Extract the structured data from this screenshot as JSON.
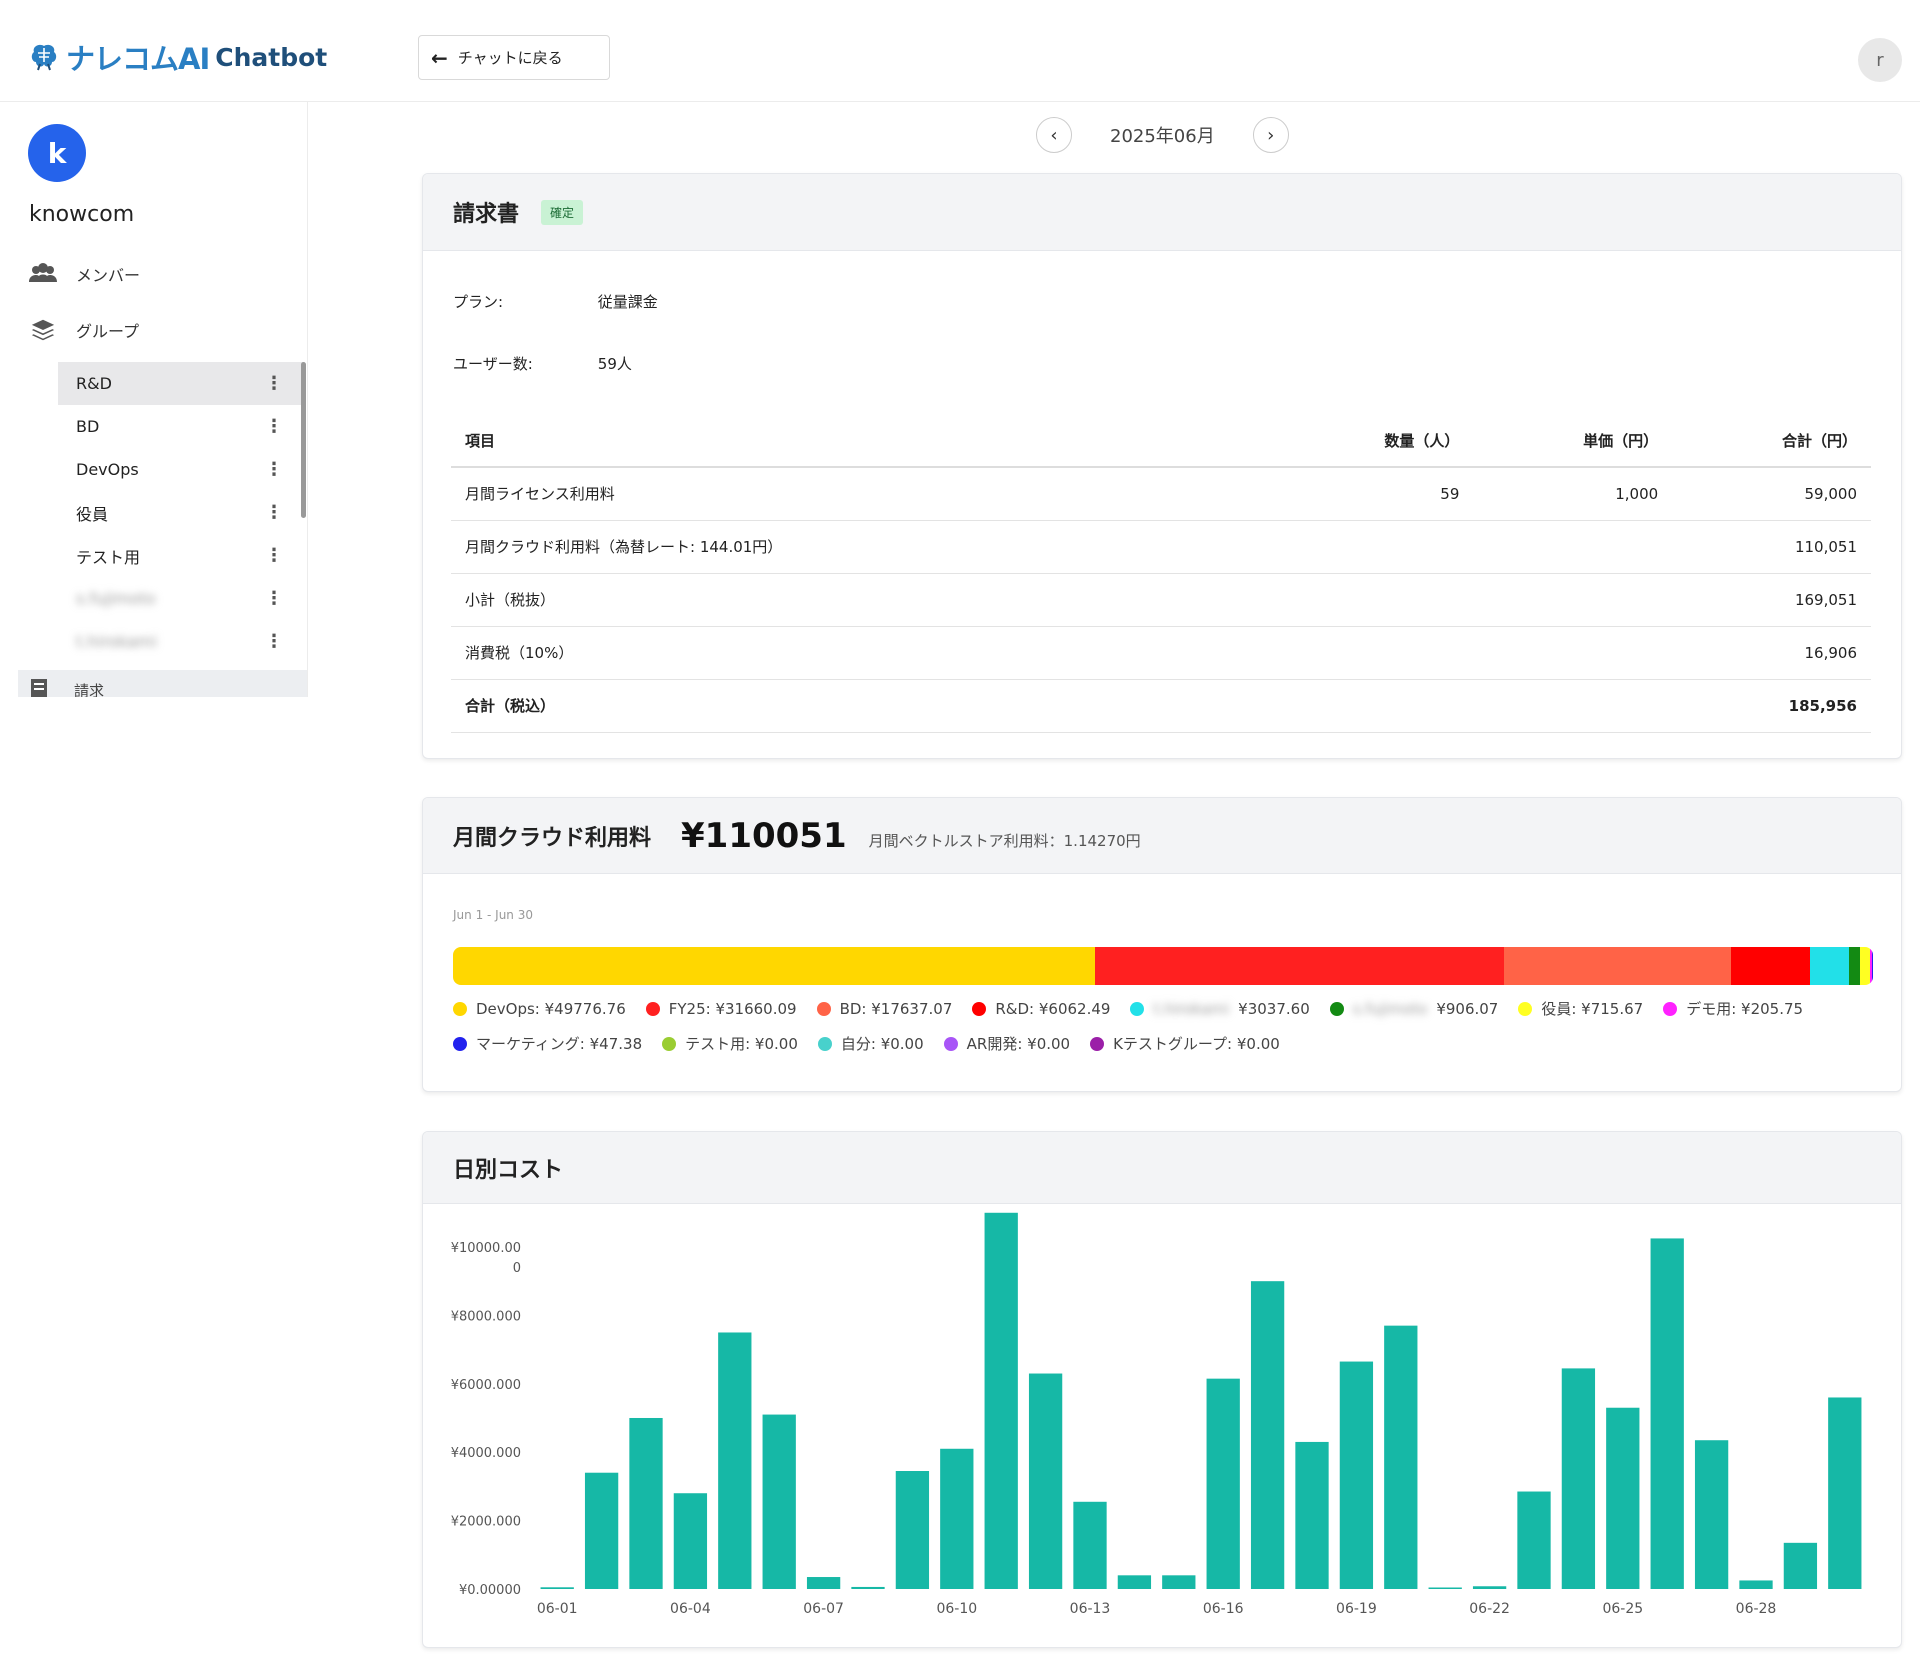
{
  "header": {
    "logo_jp": "ナレコムAI",
    "logo_en": "Chatbot",
    "back_label": "チャットに戻る",
    "user_initial": "r"
  },
  "sidebar": {
    "org_initial": "k",
    "org_name": "knowcom",
    "members_label": "メンバー",
    "groups_label": "グループ",
    "groups": [
      {
        "label": "R&D",
        "active": true
      },
      {
        "label": "BD"
      },
      {
        "label": "DevOps"
      },
      {
        "label": "役員"
      },
      {
        "label": "テスト用"
      },
      {
        "label": "s.fujimoto",
        "blurred": true
      },
      {
        "label": "t.hirokami",
        "blurred": true
      }
    ],
    "billing_label": "請求"
  },
  "month_nav": {
    "label": "2025年06月"
  },
  "invoice": {
    "title": "請求書",
    "status": "確定",
    "plan_label": "プラン:",
    "plan_value": "従量課金",
    "users_label": "ユーザー数:",
    "users_value": "59人",
    "columns": [
      "項目",
      "数量（人）",
      "単価（円）",
      "合計（円）"
    ],
    "rows": [
      [
        "月間ライセンス利用料",
        "59",
        "1,000",
        "59,000"
      ],
      [
        "月間クラウド利用料（為替レート: 144.01円）",
        "",
        "",
        "110,051"
      ],
      [
        "小計（税抜）",
        "",
        "",
        "169,051"
      ],
      [
        "消費税（10%）",
        "",
        "",
        "16,906"
      ],
      [
        "合計（税込）",
        "",
        "",
        "185,956"
      ]
    ]
  },
  "cloud": {
    "title": "月間クラウド利用料",
    "amount": "¥110051",
    "vector_note": "月間ベクトルストア利用料：1.14270円",
    "range": "Jun 1 - Jun 30",
    "segments": [
      {
        "label": "DevOps",
        "value": 49776.76,
        "display": "DevOps: ¥49776.76",
        "color": "#FFD700"
      },
      {
        "label": "FY25",
        "value": 31660.09,
        "display": "FY25: ¥31660.09",
        "color": "#FF2020"
      },
      {
        "label": "BD",
        "value": 17637.07,
        "display": "BD: ¥17637.07",
        "color": "#FF6347"
      },
      {
        "label": "R&D",
        "value": 6062.49,
        "display": "R&D: ¥6062.49",
        "color": "#FF0000"
      },
      {
        "label": "t.hirokami",
        "value": 3037.6,
        "display": "t.hirokami ¥3037.60",
        "color": "#22E0E8",
        "blur_prefix": "t.hirokami"
      },
      {
        "label": "s.fujimoto",
        "value": 906.07,
        "display": "s.fujimoto ¥906.07",
        "color": "#138A13",
        "blur_prefix": "s.fujimoto"
      },
      {
        "label": "役員",
        "value": 715.67,
        "display": "役員: ¥715.67",
        "color": "#FFFF22"
      },
      {
        "label": "デモ用",
        "value": 205.75,
        "display": "デモ用: ¥205.75",
        "color": "#FF22FF"
      },
      {
        "label": "マーケティング",
        "value": 47.38,
        "display": "マーケティング: ¥47.38",
        "color": "#2222EE"
      },
      {
        "label": "テスト用",
        "value": 0,
        "display": "テスト用: ¥0.00",
        "color": "#9ACD32"
      },
      {
        "label": "自分",
        "value": 0,
        "display": "自分: ¥0.00",
        "color": "#48D1CC"
      },
      {
        "label": "AR開発",
        "value": 0,
        "display": "AR開発: ¥0.00",
        "color": "#A855F7"
      },
      {
        "label": "Kテストグループ",
        "value": 0,
        "display": "Kテストグループ: ¥0.00",
        "color": "#9B1FA8"
      }
    ]
  },
  "daily": {
    "title": "日別コスト",
    "bar_color": "#16B8A6",
    "chart_data": {
      "type": "bar",
      "title": "日別コスト",
      "xlabel": "",
      "ylabel": "",
      "ylim": [
        0,
        10000
      ],
      "y_ticks": [
        {
          "value": 0,
          "label": "¥0.00000"
        },
        {
          "value": 2000,
          "label": "¥2000.000"
        },
        {
          "value": 4000,
          "label": "¥4000.000"
        },
        {
          "value": 6000,
          "label": "¥6000.000"
        },
        {
          "value": 8000,
          "label": "¥8000.000"
        },
        {
          "value": 10000,
          "label": "¥10000.00\n0"
        }
      ],
      "categories": [
        "06-01",
        "06-02",
        "06-03",
        "06-04",
        "06-05",
        "06-06",
        "06-07",
        "06-08",
        "06-09",
        "06-10",
        "06-11",
        "06-12",
        "06-13",
        "06-14",
        "06-15",
        "06-16",
        "06-17",
        "06-18",
        "06-19",
        "06-20",
        "06-21",
        "06-22",
        "06-23",
        "06-24",
        "06-25",
        "06-26",
        "06-27",
        "06-28",
        "06-29",
        "06-30"
      ],
      "x_tick_labels": [
        "06-01",
        "06-04",
        "06-07",
        "06-10",
        "06-13",
        "06-16",
        "06-19",
        "06-22",
        "06-25",
        "06-28"
      ],
      "values": [
        50,
        3400,
        5000,
        2800,
        7500,
        5100,
        350,
        60,
        3450,
        4100,
        11000,
        6300,
        2550,
        400,
        400,
        6150,
        9000,
        4300,
        6650,
        7700,
        40,
        80,
        2850,
        6450,
        5300,
        10250,
        4350,
        250,
        1350,
        5600
      ]
    }
  }
}
